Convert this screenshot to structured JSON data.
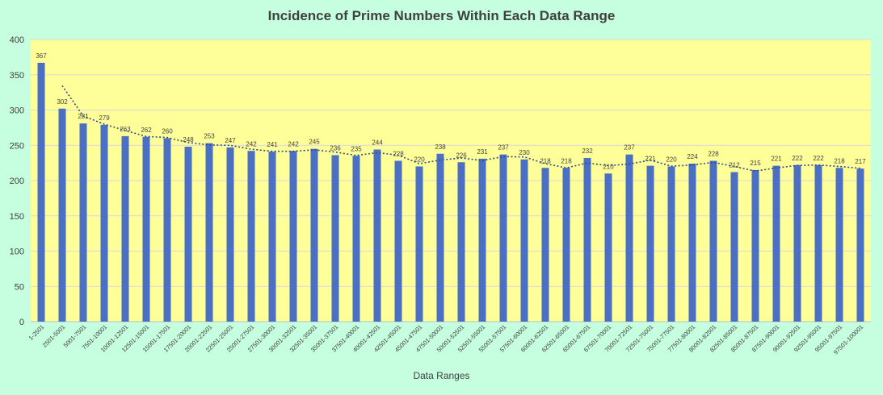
{
  "chart_data": {
    "type": "bar",
    "title": "Incidence of Prime Numbers Within Each Data Range",
    "xlabel": "Data Ranges",
    "ylabel": "",
    "ylim": [
      0,
      400
    ],
    "yticks": [
      0,
      50,
      100,
      150,
      200,
      250,
      300,
      350,
      400
    ],
    "grid": true,
    "trendline": "2-period moving average (dotted)",
    "categories": [
      "1-2501",
      "2501-5001",
      "5001-7501",
      "7501-10001",
      "10001-12501",
      "12501-15001",
      "15001-17501",
      "17501-20001",
      "20001-22501",
      "22501-25001",
      "25001-27501",
      "27501-30001",
      "30001-32501",
      "32501-35001",
      "35001-37501",
      "37501-40001",
      "40001-42501",
      "42501-45001",
      "45001-47501",
      "47501-50001",
      "50001-52501",
      "52501-55001",
      "55001-57501",
      "57501-60001",
      "60001-62501",
      "62501-65001",
      "65001-67501",
      "67501-70001",
      "70001-72501",
      "72501-75001",
      "75001-77501",
      "77501-80001",
      "80001-82501",
      "82501-85001",
      "85001-87501",
      "87501-90001",
      "90001-92501",
      "92501-95001",
      "95001-97501",
      "97501-100001"
    ],
    "values": [
      367,
      302,
      281,
      279,
      263,
      262,
      260,
      248,
      253,
      247,
      242,
      241,
      242,
      245,
      236,
      235,
      244,
      228,
      220,
      238,
      226,
      231,
      237,
      230,
      218,
      218,
      232,
      210,
      237,
      221,
      220,
      224,
      228,
      212,
      215,
      221,
      222,
      222,
      218,
      217
    ],
    "colors": {
      "bar": "#4a6fc4",
      "plot_background": "#ffff99",
      "page_background": "#c6ffe0",
      "gridline": "#d9d9d9",
      "trendline": "#2e4a8c",
      "text": "#404040"
    }
  }
}
